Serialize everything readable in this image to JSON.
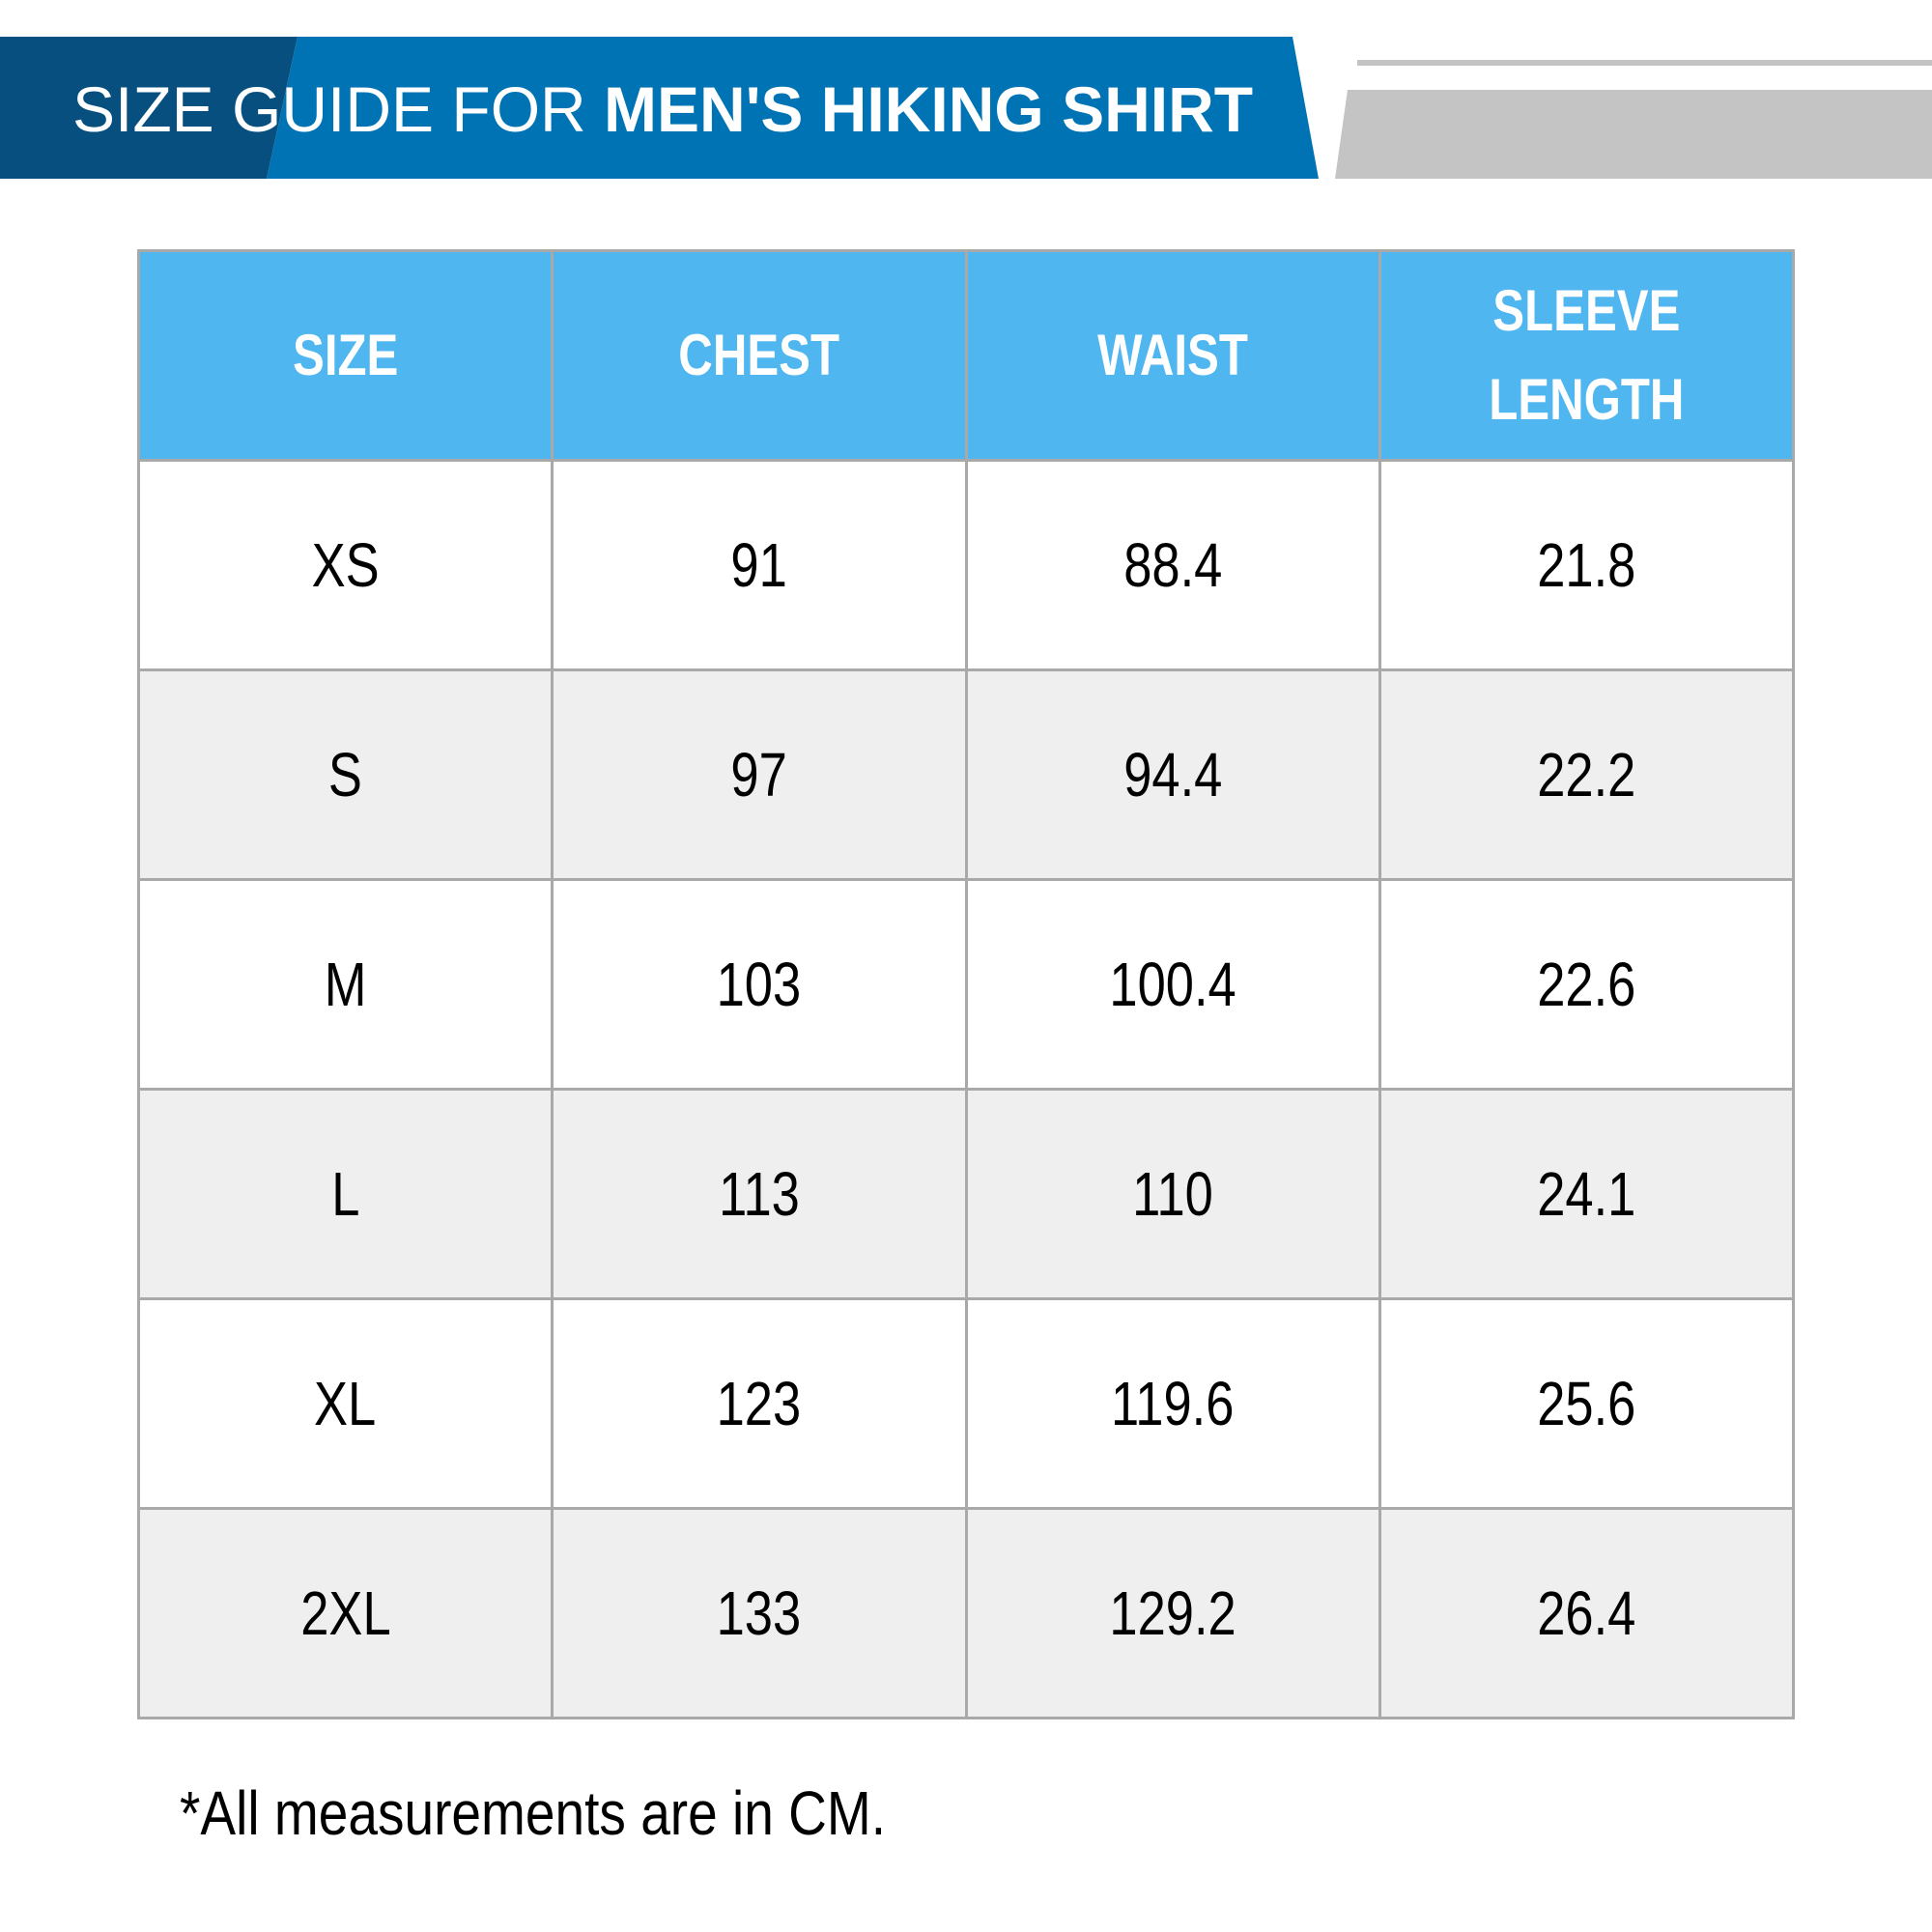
{
  "header": {
    "title_light": "SIZE GUIDE FOR ",
    "title_bold": "MEN'S HIKING SHIRT",
    "colors": {
      "banner_dark": "#064f7e",
      "banner_main": "#0073b4",
      "accent_gray": "#c4c4c4"
    }
  },
  "table": {
    "header_color": "#50b6f0",
    "columns": [
      "SIZE",
      "CHEST",
      "WAIST",
      "SLEEVE LENGTH"
    ],
    "rows": [
      [
        "XS",
        "91",
        "88.4",
        "21.8"
      ],
      [
        "S",
        "97",
        "94.4",
        "22.2"
      ],
      [
        "M",
        "103",
        "100.4",
        "22.6"
      ],
      [
        "L",
        "113",
        "110",
        "24.1"
      ],
      [
        "XL",
        "123",
        "119.6",
        "25.6"
      ],
      [
        "2XL",
        "133",
        "129.2",
        "26.4"
      ]
    ]
  },
  "footnote": "*All measurements are in CM."
}
